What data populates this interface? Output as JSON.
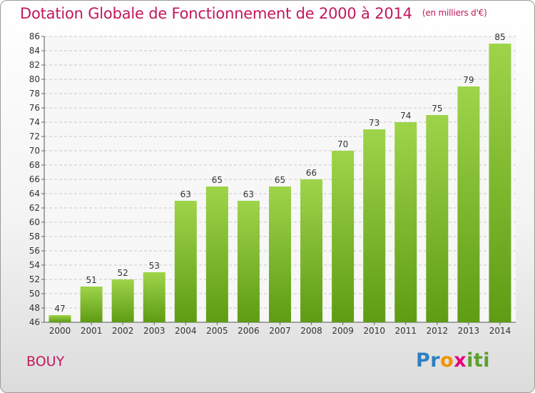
{
  "chart_data": {
    "type": "bar",
    "title": "Dotation Globale de Fonctionnement de 2000 à 2014",
    "unit": "(en milliers d'€)",
    "categories": [
      "2000",
      "2001",
      "2002",
      "2003",
      "2004",
      "2005",
      "2006",
      "2007",
      "2008",
      "2009",
      "2010",
      "2011",
      "2012",
      "2013",
      "2014"
    ],
    "values": [
      47,
      51,
      52,
      53,
      63,
      65,
      63,
      65,
      66,
      70,
      73,
      74,
      75,
      79,
      85
    ],
    "ylim": [
      46,
      86
    ],
    "yticks": [
      46,
      48,
      50,
      52,
      54,
      56,
      58,
      60,
      62,
      64,
      66,
      68,
      70,
      72,
      74,
      76,
      78,
      80,
      82,
      84,
      86
    ],
    "grid": true,
    "bar_color": "#7cbb2a"
  },
  "commune": "BOUY",
  "logo": {
    "letters": [
      "P",
      "r",
      "o",
      "x",
      "i",
      "t",
      "i"
    ],
    "colors": [
      "#2e7fc2",
      "#2e7fc2",
      "#f39200",
      "#e6007e",
      "#5aa02c",
      "#5aa02c",
      "#5aa02c"
    ]
  }
}
